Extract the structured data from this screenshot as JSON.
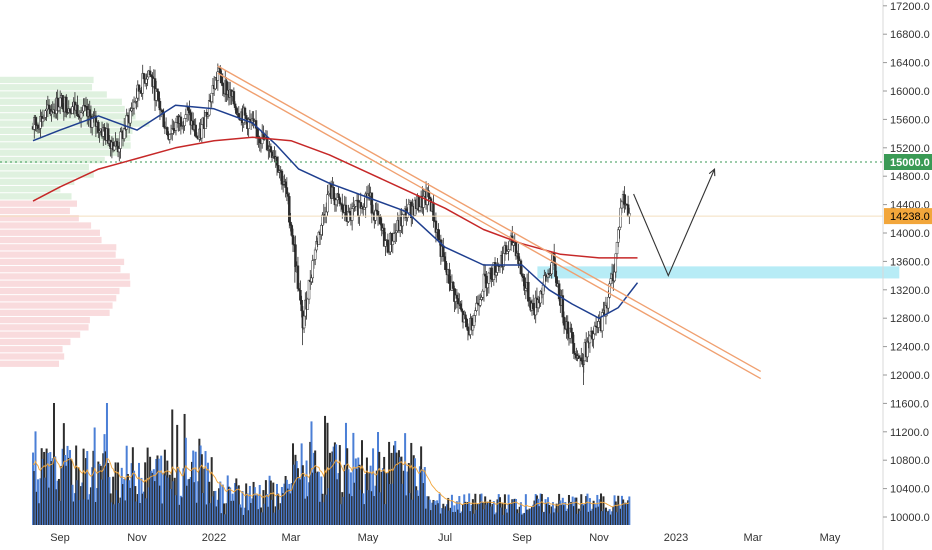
{
  "chart_data": {
    "type": "candlestick",
    "title": "",
    "xlabel": "",
    "ylabel": "",
    "ylim": [
      9950,
      17300
    ],
    "grid": false,
    "legend": "none",
    "y_ticks": [
      "17200.0",
      "16800.0",
      "16400.0",
      "16000.0",
      "15600.0",
      "15200.0",
      "14800.0",
      "14400.0",
      "14000.0",
      "13600.0",
      "13200.0",
      "12800.0",
      "12400.0",
      "12000.0",
      "11600.0",
      "11200.0",
      "10800.0",
      "10400.0",
      "10000.0"
    ],
    "x_ticks": [
      {
        "label": "Sep",
        "month": 0
      },
      {
        "label": "Nov",
        "month": 2
      },
      {
        "label": "2022",
        "month": 4
      },
      {
        "label": "Mar",
        "month": 6
      },
      {
        "label": "May",
        "month": 8
      },
      {
        "label": "Jul",
        "month": 10
      },
      {
        "label": "Sep",
        "month": 12
      },
      {
        "label": "Nov",
        "month": 14
      },
      {
        "label": "2023",
        "month": 16
      },
      {
        "label": "Mar",
        "month": 18
      },
      {
        "label": "May",
        "month": 20
      }
    ],
    "price_path": [
      [
        -0.7,
        15500
      ],
      [
        0,
        15850
      ],
      [
        0.5,
        15750
      ],
      [
        1,
        15500
      ],
      [
        1.5,
        15200
      ],
      [
        2,
        15950
      ],
      [
        2.3,
        16300
      ],
      [
        2.8,
        15400
      ],
      [
        3.3,
        15700
      ],
      [
        3.6,
        15300
      ],
      [
        3.9,
        15900
      ],
      [
        4.1,
        16250
      ],
      [
        4.6,
        15750
      ],
      [
        5.0,
        15500
      ],
      [
        5.6,
        15100
      ],
      [
        5.9,
        14500
      ],
      [
        6.1,
        13700
      ],
      [
        6.3,
        12700
      ],
      [
        6.6,
        13700
      ],
      [
        7.0,
        14600
      ],
      [
        7.5,
        14200
      ],
      [
        8.0,
        14550
      ],
      [
        8.5,
        13800
      ],
      [
        9.0,
        14300
      ],
      [
        9.6,
        14500
      ],
      [
        10.0,
        13500
      ],
      [
        10.6,
        12600
      ],
      [
        11.0,
        13300
      ],
      [
        11.3,
        13500
      ],
      [
        11.8,
        13900
      ],
      [
        12.0,
        13400
      ],
      [
        12.3,
        12900
      ],
      [
        12.8,
        13600
      ],
      [
        13.1,
        12800
      ],
      [
        13.5,
        12200
      ],
      [
        13.8,
        12500
      ],
      [
        14.1,
        12800
      ],
      [
        14.4,
        13500
      ],
      [
        14.6,
        14500
      ],
      [
        14.8,
        14300
      ]
    ],
    "series": [
      {
        "name": "",
        "type": "ma-fast",
        "color": "#1f3f8f",
        "points": [
          [
            -0.7,
            15300
          ],
          [
            0,
            15450
          ],
          [
            1,
            15650
          ],
          [
            2,
            15450
          ],
          [
            3,
            15800
          ],
          [
            4,
            15750
          ],
          [
            5,
            15550
          ],
          [
            5.6,
            15250
          ],
          [
            6.2,
            14900
          ],
          [
            7,
            14700
          ],
          [
            8,
            14500
          ],
          [
            9,
            14300
          ],
          [
            10,
            13800
          ],
          [
            11,
            13550
          ],
          [
            12,
            13550
          ],
          [
            12.7,
            13200
          ],
          [
            13.3,
            13000
          ],
          [
            14,
            12800
          ],
          [
            14.5,
            12950
          ],
          [
            15.0,
            13300
          ]
        ]
      },
      {
        "name": "",
        "type": "ma-slow",
        "color": "#c62828",
        "points": [
          [
            -0.7,
            14450
          ],
          [
            0,
            14650
          ],
          [
            1,
            14900
          ],
          [
            2,
            15050
          ],
          [
            3,
            15200
          ],
          [
            4,
            15300
          ],
          [
            5,
            15350
          ],
          [
            6,
            15300
          ],
          [
            7,
            15100
          ],
          [
            8,
            14850
          ],
          [
            9,
            14600
          ],
          [
            10,
            14350
          ],
          [
            11,
            14050
          ],
          [
            12,
            13850
          ],
          [
            13,
            13700
          ],
          [
            14,
            13650
          ],
          [
            15.0,
            13650
          ]
        ]
      }
    ],
    "trendlines": [
      {
        "color": "#f0a070",
        "from": [
          4.1,
          16350
        ],
        "to": [
          18.2,
          12050
        ]
      },
      {
        "color": "#f0a070",
        "from": [
          4.1,
          16250
        ],
        "to": [
          18.2,
          11950
        ]
      }
    ],
    "projection": {
      "color": "#333333",
      "points": [
        [
          14.9,
          14550
        ],
        [
          15.8,
          13400
        ],
        [
          17.0,
          14900
        ]
      ]
    },
    "zone": {
      "color": "#b7ecf6",
      "from_month": 12.4,
      "to_month": 21.8,
      "y_top": 13530,
      "y_bottom": 13360
    },
    "target_line": {
      "value": 15000.0,
      "label": "15000.0",
      "color": "#3a9a55"
    },
    "last_price": {
      "value": 14238.0,
      "label": "14238.0",
      "color": "#f2a63b"
    },
    "volume_profile": {
      "high_volume_color": "#dcefdc",
      "low_volume_color": "#f8d7d9",
      "split_price": 14450,
      "bins_top": 16200,
      "bins_bottom": 12100,
      "bin_count": 40
    },
    "volume_bars": {
      "colors": [
        "#2d2d2d",
        "#4b7fd6"
      ],
      "avg_line_color": "#f2a63b"
    }
  }
}
